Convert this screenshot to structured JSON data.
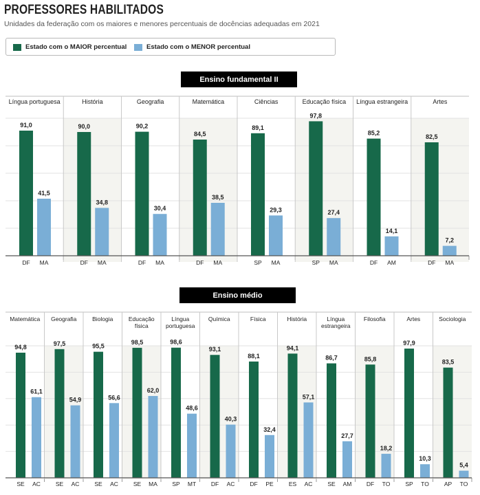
{
  "title": "PROFESSORES HABILITADOS",
  "subtitle": "Unidades da federação com os maiores e menores percentuais de docências adequadas em 2021",
  "legend": {
    "maior": "Estado com o MAIOR percentual",
    "menor": "Estado com o MENOR percentual"
  },
  "colors": {
    "maior": "#17694a",
    "menor": "#7aaed6",
    "band": "#f4f4f0"
  },
  "chart_data": [
    {
      "type": "bar",
      "title": "Ensino fundamental II",
      "ylim": [
        0,
        100
      ],
      "series": [
        {
          "name": "Estado com o MAIOR percentual",
          "values": [
            91.0,
            90.0,
            90.2,
            84.5,
            89.1,
            97.8,
            85.2,
            82.5
          ]
        },
        {
          "name": "Estado com o MENOR percentual",
          "values": [
            41.5,
            34.8,
            30.4,
            38.5,
            29.3,
            27.4,
            14.1,
            7.2
          ]
        }
      ],
      "categories": [
        {
          "label": [
            "Língua portuguesa"
          ],
          "maior_state": "DF",
          "maior_label": "91,0",
          "menor_state": "MA",
          "menor_label": "41,5"
        },
        {
          "label": [
            "História"
          ],
          "maior_state": "DF",
          "maior_label": "90,0",
          "menor_state": "MA",
          "menor_label": "34,8"
        },
        {
          "label": [
            "Geografia"
          ],
          "maior_state": "DF",
          "maior_label": "90,2",
          "menor_state": "MA",
          "menor_label": "30,4"
        },
        {
          "label": [
            "Matemática"
          ],
          "maior_state": "DF",
          "maior_label": "84,5",
          "menor_state": "MA",
          "menor_label": "38,5"
        },
        {
          "label": [
            "Ciências"
          ],
          "maior_state": "SP",
          "maior_label": "89,1",
          "menor_state": "MA",
          "menor_label": "29,3"
        },
        {
          "label": [
            "Educação física"
          ],
          "maior_state": "SP",
          "maior_label": "97,8",
          "menor_state": "MA",
          "menor_label": "27,4"
        },
        {
          "label": [
            "Língua estrangeira"
          ],
          "maior_state": "DF",
          "maior_label": "85,2",
          "menor_state": "AM",
          "menor_label": "14,1"
        },
        {
          "label": [
            "Artes"
          ],
          "maior_state": "DF",
          "maior_label": "82,5",
          "menor_state": "MA",
          "menor_label": "7,2"
        }
      ]
    },
    {
      "type": "bar",
      "title": "Ensino médio",
      "ylim": [
        0,
        100
      ],
      "series": [
        {
          "name": "Estado com o MAIOR percentual",
          "values": [
            94.8,
            97.5,
            95.5,
            98.5,
            98.6,
            93.1,
            88.1,
            94.1,
            86.7,
            85.8,
            97.9,
            83.5
          ]
        },
        {
          "name": "Estado com o MENOR percentual",
          "values": [
            61.1,
            54.9,
            56.6,
            62.0,
            48.6,
            40.3,
            32.4,
            57.1,
            27.7,
            18.2,
            10.3,
            5.4
          ]
        }
      ],
      "categories": [
        {
          "label": [
            "Matemática"
          ],
          "maior_state": "SE",
          "maior_label": "94,8",
          "menor_state": "AC",
          "menor_label": "61,1"
        },
        {
          "label": [
            "Geografia"
          ],
          "maior_state": "SE",
          "maior_label": "97,5",
          "menor_state": "AC",
          "menor_label": "54,9"
        },
        {
          "label": [
            "Biologia"
          ],
          "maior_state": "SE",
          "maior_label": "95,5",
          "menor_state": "AC",
          "menor_label": "56,6"
        },
        {
          "label": [
            "Educação",
            "física"
          ],
          "maior_state": "SE",
          "maior_label": "98,5",
          "menor_state": "MA",
          "menor_label": "62,0"
        },
        {
          "label": [
            "Língua",
            "portuguesa"
          ],
          "maior_state": "SP",
          "maior_label": "98,6",
          "menor_state": "MT",
          "menor_label": "48,6"
        },
        {
          "label": [
            "Química"
          ],
          "maior_state": "DF",
          "maior_label": "93,1",
          "menor_state": "AC",
          "menor_label": "40,3"
        },
        {
          "label": [
            "Física"
          ],
          "maior_state": "DF",
          "maior_label": "88,1",
          "menor_state": "PE",
          "menor_label": "32,4"
        },
        {
          "label": [
            "História"
          ],
          "maior_state": "ES",
          "maior_label": "94,1",
          "menor_state": "AC",
          "menor_label": "57,1"
        },
        {
          "label": [
            "Língua",
            "estrangeira"
          ],
          "maior_state": "SE",
          "maior_label": "86,7",
          "menor_state": "AM",
          "menor_label": "27,7"
        },
        {
          "label": [
            "Filosofia"
          ],
          "maior_state": "DF",
          "maior_label": "85,8",
          "menor_state": "TO",
          "menor_label": "18,2"
        },
        {
          "label": [
            "Artes"
          ],
          "maior_state": "SP",
          "maior_label": "97,9",
          "menor_state": "TO",
          "menor_label": "10,3"
        },
        {
          "label": [
            "Sociologia"
          ],
          "maior_state": "AP",
          "maior_label": "83,5",
          "menor_state": "TO",
          "menor_label": "5,4"
        }
      ]
    }
  ]
}
